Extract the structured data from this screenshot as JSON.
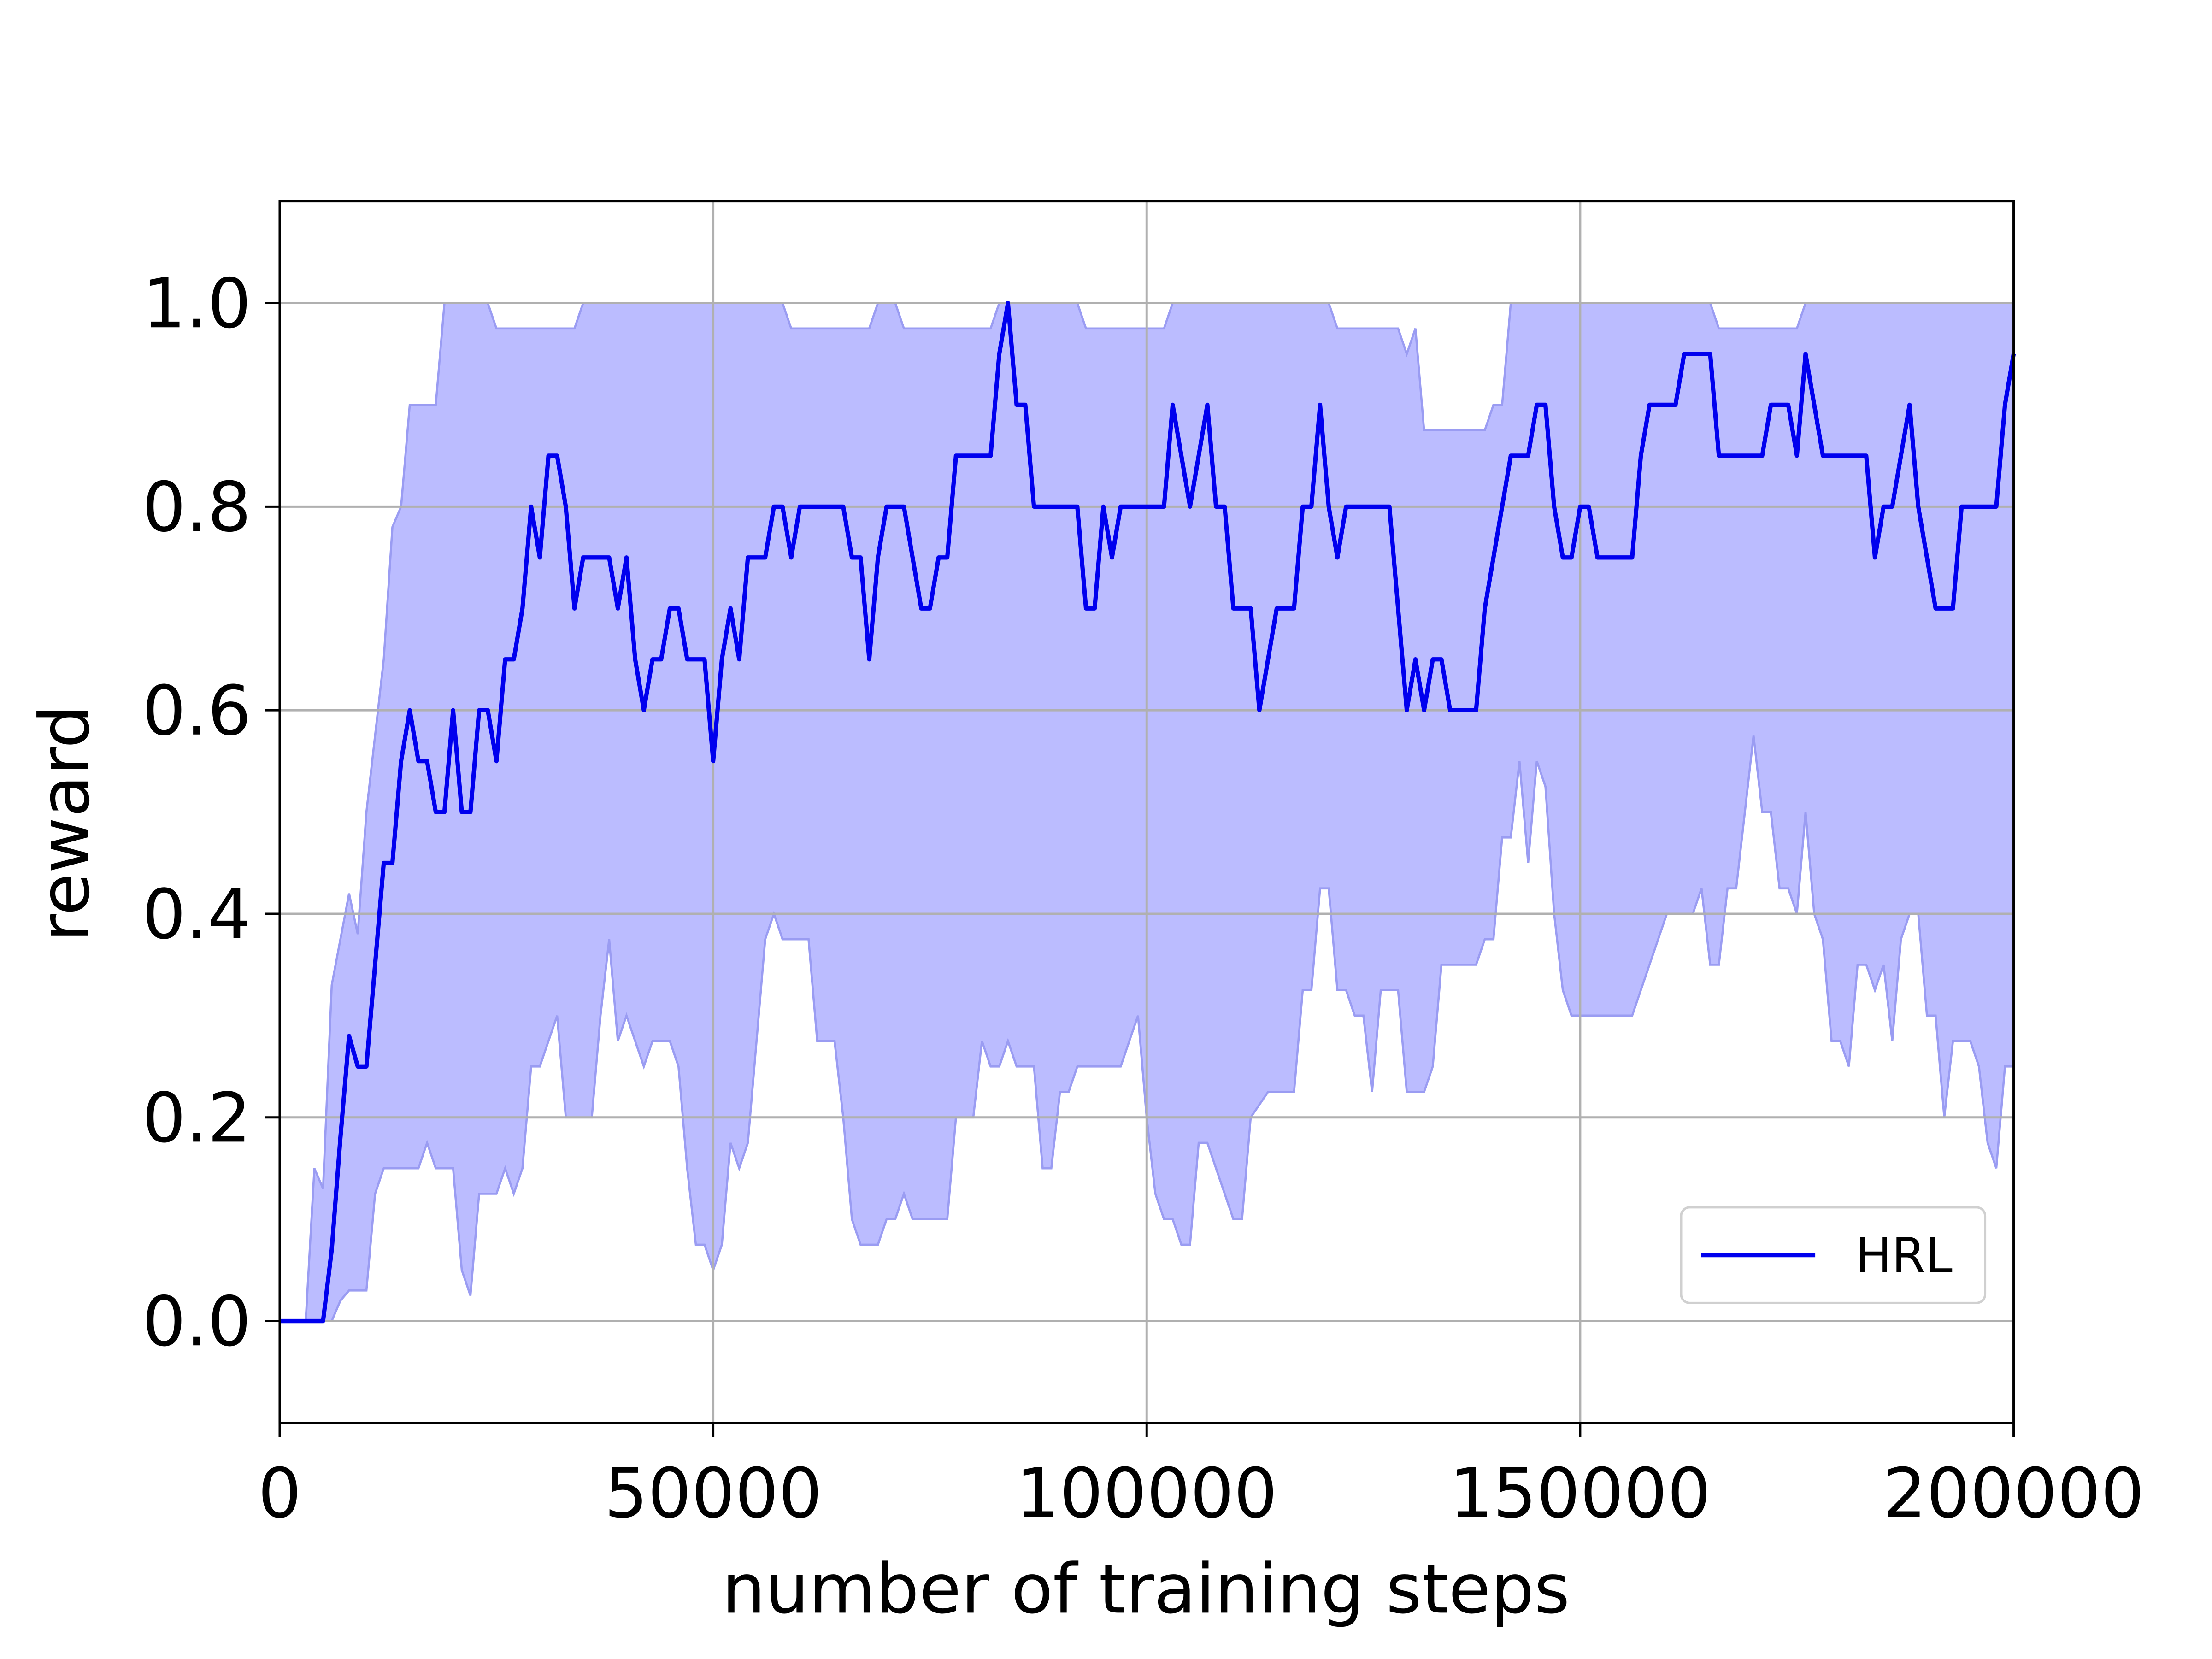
{
  "chart_data": {
    "type": "line",
    "xlabel": "number of training steps",
    "ylabel": "reward",
    "xlim": [
      0,
      200000
    ],
    "ylim": [
      -0.1,
      1.1
    ],
    "xticks": [
      0,
      50000,
      100000,
      150000,
      200000
    ],
    "yticks": [
      {
        "value": 0,
        "label": "0.0"
      },
      0.2,
      0.4,
      0.6,
      0.8,
      {
        "value": 1,
        "label": "1.0"
      }
    ],
    "grid": true,
    "legend": "lower right",
    "series": [
      {
        "name": "HRL",
        "color": "#0000ee",
        "x": [
          0,
          5000,
          6000,
          7000,
          8000,
          9000,
          10000,
          12000,
          13000,
          14000,
          15000,
          16000,
          17000,
          18000,
          19000,
          20000,
          21000,
          22000,
          23000,
          24000,
          25000,
          26000,
          27000,
          28000,
          29000,
          30000,
          31000,
          32000,
          33000,
          34000,
          35000,
          38000,
          39000,
          40000,
          41000,
          42000,
          43000,
          44000,
          45000,
          46000,
          47000,
          49000,
          50000,
          51000,
          52000,
          53000,
          54000,
          56000,
          57000,
          58000,
          59000,
          60000,
          65000,
          66000,
          67000,
          68000,
          69000,
          70000,
          72000,
          73000,
          74000,
          75000,
          76000,
          77000,
          78000,
          82000,
          83000,
          84000,
          85000,
          86000,
          87000,
          92000,
          93000,
          94000,
          95000,
          96000,
          97000,
          102000,
          103000,
          104000,
          105000,
          106000,
          107000,
          108000,
          109000,
          110000,
          112000,
          113000,
          114000,
          115000,
          117000,
          118000,
          119000,
          120000,
          121000,
          122000,
          123000,
          128000,
          129000,
          130000,
          131000,
          132000,
          133000,
          134000,
          135000,
          138000,
          139000,
          142000,
          144000,
          145000,
          146000,
          147000,
          148000,
          149000,
          150000,
          151000,
          152000,
          156000,
          157000,
          158000,
          161000,
          162000,
          165000,
          166000,
          171000,
          172000,
          174000,
          175000,
          176000,
          177000,
          178000,
          183000,
          184000,
          185000,
          186000,
          188000,
          189000,
          191000,
          193000,
          194000,
          198000,
          199000,
          200000
        ],
        "values": [
          0,
          0,
          0.07,
          0.18,
          0.28,
          0.25,
          0.25,
          0.45,
          0.45,
          0.55,
          0.6,
          0.55,
          0.55,
          0.5,
          0.5,
          0.6,
          0.5,
          0.5,
          0.6,
          0.6,
          0.55,
          0.65,
          0.65,
          0.7,
          0.8,
          0.75,
          0.85,
          0.85,
          0.8,
          0.7,
          0.75,
          0.75,
          0.7,
          0.75,
          0.65,
          0.6,
          0.65,
          0.65,
          0.7,
          0.7,
          0.65,
          0.65,
          0.55,
          0.65,
          0.7,
          0.65,
          0.75,
          0.75,
          0.8,
          0.8,
          0.75,
          0.8,
          0.8,
          0.75,
          0.75,
          0.65,
          0.75,
          0.8,
          0.8,
          0.75,
          0.7,
          0.7,
          0.75,
          0.75,
          0.85,
          0.85,
          0.95,
          1.0,
          0.9,
          0.9,
          0.8,
          0.8,
          0.7,
          0.7,
          0.8,
          0.75,
          0.8,
          0.8,
          0.9,
          0.85,
          0.8,
          0.85,
          0.9,
          0.8,
          0.8,
          0.7,
          0.7,
          0.6,
          0.65,
          0.7,
          0.7,
          0.8,
          0.8,
          0.9,
          0.8,
          0.75,
          0.8,
          0.8,
          0.7,
          0.6,
          0.65,
          0.6,
          0.65,
          0.65,
          0.6,
          0.6,
          0.7,
          0.85,
          0.85,
          0.9,
          0.9,
          0.8,
          0.75,
          0.75,
          0.8,
          0.8,
          0.75,
          0.75,
          0.85,
          0.9,
          0.9,
          0.95,
          0.95,
          0.85,
          0.85,
          0.9,
          0.9,
          0.85,
          0.95,
          0.9,
          0.85,
          0.85,
          0.75,
          0.8,
          0.8,
          0.9,
          0.8,
          0.7,
          0.7,
          0.8,
          0.8,
          0.9,
          0.95
        ]
      }
    ],
    "band": {
      "color": "#bbbcff",
      "edge_color": "#9a9cf2",
      "upper": {
        "x": [
          0,
          3000,
          4000,
          5000,
          6000,
          8000,
          9000,
          10000,
          12000,
          13000,
          14000,
          15000,
          18000,
          19000,
          24000,
          25000,
          34000,
          35000,
          58000,
          59000,
          68000,
          69000,
          71000,
          72000,
          82000,
          83000,
          92000,
          93000,
          102000,
          103000,
          121000,
          122000,
          129000,
          130000,
          131000,
          132000,
          139000,
          140000,
          141000,
          142000,
          165000,
          166000,
          175000,
          176000,
          199000,
          200000
        ],
        "values": [
          0,
          0,
          0.15,
          0.13,
          0.33,
          0.42,
          0.38,
          0.5,
          0.65,
          0.78,
          0.8,
          0.9,
          0.9,
          1.0,
          1.0,
          0.975,
          0.975,
          1.0,
          1.0,
          0.975,
          0.975,
          1.0,
          1.0,
          0.975,
          0.975,
          1.0,
          1.0,
          0.975,
          0.975,
          1.0,
          1.0,
          0.975,
          0.975,
          0.95,
          0.975,
          0.875,
          0.875,
          0.9,
          0.9,
          1.0,
          1.0,
          0.975,
          0.975,
          1.0,
          1.0,
          1.0
        ]
      },
      "lower": {
        "x": [
          0,
          6000,
          7000,
          8000,
          10000,
          11000,
          12000,
          16000,
          17000,
          18000,
          20000,
          21000,
          22000,
          23000,
          25000,
          26000,
          27000,
          28000,
          29000,
          30000,
          31000,
          32000,
          33000,
          36000,
          37000,
          38000,
          39000,
          40000,
          41000,
          42000,
          43000,
          45000,
          46000,
          47000,
          48000,
          49000,
          50000,
          51000,
          52000,
          53000,
          54000,
          56000,
          57000,
          58000,
          61000,
          62000,
          64000,
          65000,
          66000,
          67000,
          69000,
          70000,
          71000,
          72000,
          73000,
          77000,
          78000,
          80000,
          81000,
          82000,
          83000,
          84000,
          85000,
          87000,
          88000,
          89000,
          90000,
          91000,
          92000,
          97000,
          99000,
          100000,
          101000,
          102000,
          103000,
          104000,
          105000,
          106000,
          107000,
          110000,
          111000,
          112000,
          114000,
          117000,
          118000,
          119000,
          120000,
          121000,
          122000,
          123000,
          124000,
          125000,
          126000,
          127000,
          129000,
          130000,
          132000,
          133000,
          134000,
          138000,
          139000,
          140000,
          141000,
          142000,
          143000,
          144000,
          145000,
          146000,
          147000,
          148000,
          149000,
          156000,
          157000,
          160000,
          163000,
          164000,
          165000,
          166000,
          167000,
          168000,
          169000,
          170000,
          171000,
          172000,
          173000,
          174000,
          175000,
          176000,
          177000,
          178000,
          179000,
          180000,
          181000,
          182000,
          183000,
          184000,
          185000,
          186000,
          187000,
          188000,
          189000,
          190000,
          191000,
          192000,
          193000,
          195000,
          196000,
          197000,
          198000,
          199000,
          200000
        ],
        "values": [
          0,
          0,
          0.02,
          0.03,
          0.03,
          0.125,
          0.15,
          0.15,
          0.175,
          0.15,
          0.15,
          0.05,
          0.025,
          0.125,
          0.125,
          0.15,
          0.125,
          0.15,
          0.25,
          0.25,
          0.275,
          0.3,
          0.2,
          0.2,
          0.3,
          0.375,
          0.275,
          0.3,
          0.275,
          0.25,
          0.275,
          0.275,
          0.25,
          0.15,
          0.075,
          0.075,
          0.05,
          0.075,
          0.175,
          0.15,
          0.175,
          0.375,
          0.4,
          0.375,
          0.375,
          0.275,
          0.275,
          0.2,
          0.1,
          0.075,
          0.075,
          0.1,
          0.1,
          0.125,
          0.1,
          0.1,
          0.2,
          0.2,
          0.275,
          0.25,
          0.25,
          0.275,
          0.25,
          0.25,
          0.15,
          0.15,
          0.225,
          0.225,
          0.25,
          0.25,
          0.3,
          0.2,
          0.125,
          0.1,
          0.1,
          0.075,
          0.075,
          0.175,
          0.175,
          0.1,
          0.1,
          0.2,
          0.225,
          0.225,
          0.325,
          0.325,
          0.425,
          0.425,
          0.325,
          0.325,
          0.3,
          0.3,
          0.225,
          0.325,
          0.325,
          0.225,
          0.225,
          0.25,
          0.35,
          0.35,
          0.375,
          0.375,
          0.475,
          0.475,
          0.55,
          0.45,
          0.55,
          0.525,
          0.4,
          0.325,
          0.3,
          0.3,
          0.325,
          0.4,
          0.4,
          0.425,
          0.35,
          0.35,
          0.425,
          0.425,
          0.5,
          0.575,
          0.5,
          0.5,
          0.425,
          0.425,
          0.4,
          0.5,
          0.4,
          0.375,
          0.275,
          0.275,
          0.25,
          0.35,
          0.35,
          0.325,
          0.35,
          0.275,
          0.375,
          0.4,
          0.4,
          0.3,
          0.3,
          0.2,
          0.275,
          0.275,
          0.25,
          0.175,
          0.15,
          0.25,
          0.25
        ]
      }
    }
  }
}
